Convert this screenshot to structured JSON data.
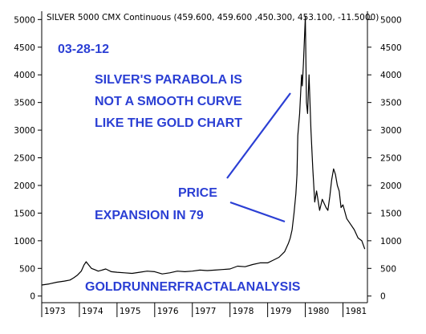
{
  "chart_data": {
    "type": "line",
    "title": "SILVER 5000 CMX Continuous (459.600, 459.600 ,450.300, 453.100, -11.5000)",
    "xlabel": "",
    "ylabel": "",
    "x_tick_labels": [
      "1973",
      "1974",
      "1975",
      "1976",
      "1977",
      "1978",
      "1979",
      "1980",
      "1981"
    ],
    "y_ticks": [
      0,
      500,
      1000,
      1500,
      2000,
      2500,
      3000,
      3500,
      4000,
      4500,
      5000
    ],
    "y_tick_labels": [
      "0",
      "500",
      "1000",
      "1500",
      "2000",
      "2500",
      "3000",
      "3500",
      "4000",
      "4500",
      "5000"
    ],
    "xlim": [
      1973.0,
      1981.65
    ],
    "ylim": [
      -120,
      5150
    ],
    "grid": false,
    "legend": "none",
    "series": [
      {
        "x": [
          1973.0,
          1973.2,
          1973.4,
          1973.6,
          1973.75,
          1973.85,
          1973.95,
          1974.05,
          1974.12,
          1974.18,
          1974.25,
          1974.32,
          1974.4,
          1974.5,
          1974.6,
          1974.7,
          1974.85,
          1975.0,
          1975.2,
          1975.4,
          1975.6,
          1975.8,
          1976.0,
          1976.2,
          1976.4,
          1976.6,
          1976.8,
          1977.0,
          1977.2,
          1977.4,
          1977.6,
          1977.8,
          1978.0,
          1978.2,
          1978.4,
          1978.6,
          1978.8,
          1979.0,
          1979.15,
          1979.3,
          1979.45,
          1979.55,
          1979.6,
          1979.65,
          1979.7,
          1979.75,
          1979.78,
          1979.8,
          1979.85,
          1979.9,
          1979.92,
          1979.95,
          1980.0,
          1980.03,
          1980.06,
          1980.1,
          1980.15,
          1980.2,
          1980.25,
          1980.3,
          1980.38,
          1980.45,
          1980.55,
          1980.6,
          1980.65,
          1980.7,
          1980.75,
          1980.8,
          1980.85,
          1980.9,
          1980.95,
          1981.0,
          1981.1,
          1981.2,
          1981.3,
          1981.4,
          1981.5,
          1981.58
        ],
        "values": [
          200,
          220,
          250,
          270,
          290,
          330,
          380,
          450,
          560,
          620,
          560,
          500,
          480,
          450,
          470,
          490,
          440,
          430,
          420,
          410,
          430,
          450,
          440,
          400,
          420,
          450,
          440,
          450,
          470,
          460,
          470,
          480,
          490,
          540,
          530,
          570,
          600,
          600,
          650,
          700,
          800,
          950,
          1050,
          1200,
          1500,
          1850,
          2200,
          2900,
          3300,
          4000,
          3800,
          4200,
          5050,
          3500,
          3300,
          4000,
          3000,
          2300,
          1700,
          1900,
          1550,
          1750,
          1600,
          1550,
          1800,
          2100,
          2300,
          2200,
          2000,
          1900,
          1600,
          1650,
          1400,
          1300,
          1200,
          1050,
          1000,
          850
        ]
      }
    ],
    "annotations": [
      "03-28-12",
      "SILVER'S PARABOLA IS",
      "NOT A SMOOTH CURVE",
      "LIKE THE GOLD CHART",
      "PRICE",
      "EXPANSION IN 79",
      "GOLDRUNNERFRACTALANALYSIS"
    ]
  }
}
